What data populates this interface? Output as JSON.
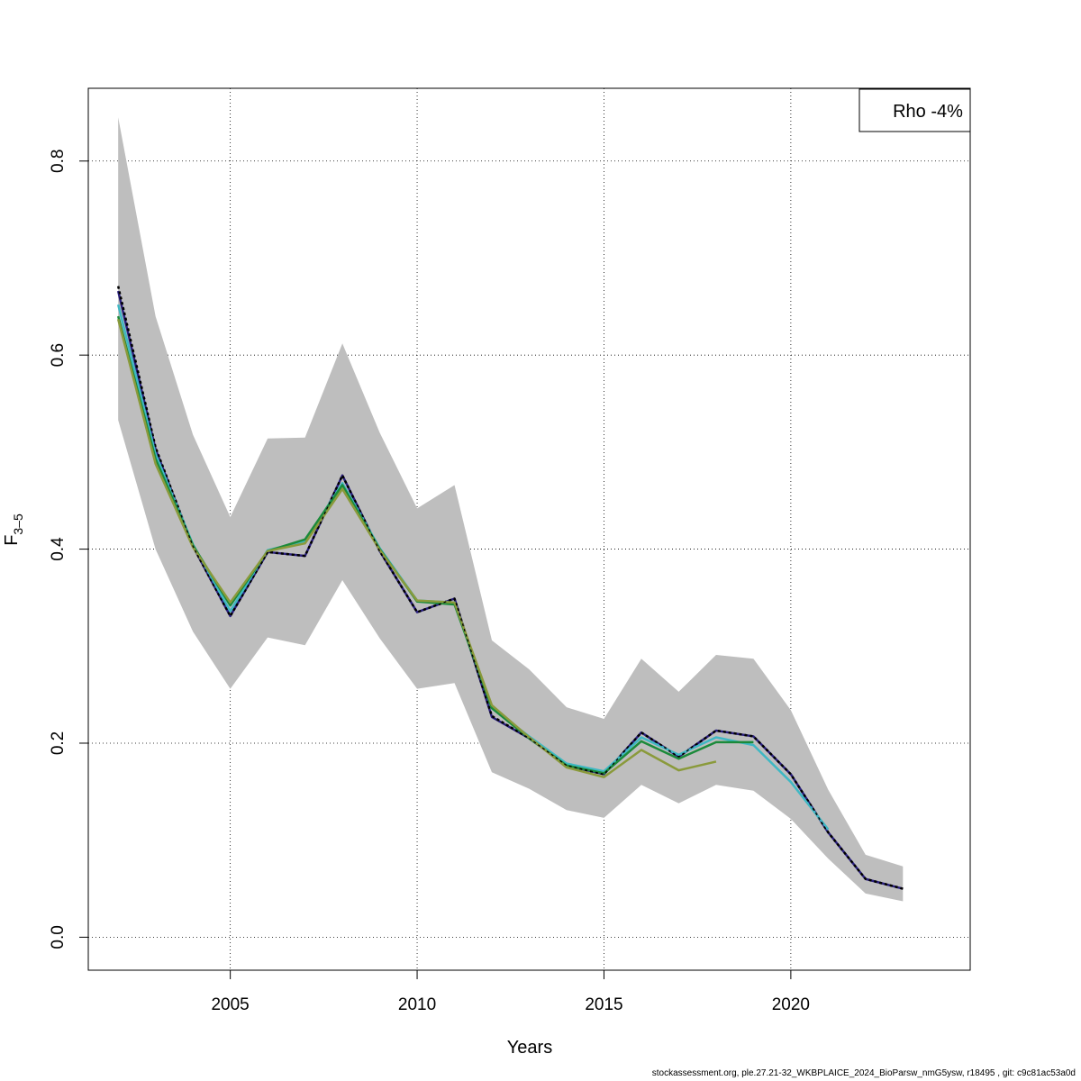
{
  "chart_data": {
    "type": "line",
    "xlabel": "Years",
    "ylabel": "F",
    "ylabel_subscript": "3–5",
    "xlim": [
      2001.2,
      2024.8
    ],
    "ylim": [
      -0.034,
      0.875
    ],
    "xticks": [
      2005,
      2010,
      2015,
      2020
    ],
    "yticks": [
      0.0,
      0.2,
      0.4,
      0.6,
      0.8
    ],
    "xtick_labels": [
      "2005",
      "2010",
      "2015",
      "2020"
    ],
    "ytick_labels": [
      "0.0",
      "0.2",
      "0.4",
      "0.6",
      "0.8"
    ],
    "grid": true,
    "legend": {
      "position": "top-right",
      "text": "Rho -4%"
    },
    "band": {
      "color": "#bebebe",
      "x": [
        2002,
        2003,
        2004,
        2005,
        2006,
        2007,
        2008,
        2009,
        2010,
        2011,
        2012,
        2013,
        2014,
        2015,
        2016,
        2017,
        2018,
        2019,
        2020,
        2021,
        2022,
        2023
      ],
      "upper": [
        0.845,
        0.64,
        0.518,
        0.433,
        0.514,
        0.515,
        0.612,
        0.52,
        0.442,
        0.466,
        0.306,
        0.276,
        0.237,
        0.225,
        0.287,
        0.253,
        0.291,
        0.287,
        0.234,
        0.152,
        0.085,
        0.073
      ],
      "lower": [
        0.533,
        0.4,
        0.315,
        0.256,
        0.309,
        0.301,
        0.368,
        0.308,
        0.256,
        0.262,
        0.17,
        0.153,
        0.131,
        0.123,
        0.157,
        0.138,
        0.157,
        0.151,
        0.122,
        0.081,
        0.045,
        0.037
      ]
    },
    "series": [
      {
        "color": "#000000",
        "dashed": true,
        "x": [
          2002,
          2003,
          2004,
          2005,
          2006,
          2007,
          2008,
          2009,
          2010,
          2011,
          2012,
          2013,
          2014,
          2015,
          2016,
          2017,
          2018,
          2019,
          2020,
          2021,
          2022,
          2023
        ],
        "values": [
          0.671,
          0.505,
          0.403,
          0.331,
          0.397,
          0.393,
          0.476,
          0.398,
          0.335,
          0.349,
          0.228,
          0.205,
          0.177,
          0.168,
          0.211,
          0.186,
          0.213,
          0.207,
          0.168,
          0.108,
          0.06,
          0.05
        ]
      },
      {
        "color": "#2a1f7e",
        "x": [
          2002,
          2003,
          2004,
          2005,
          2006,
          2007,
          2008,
          2009,
          2010,
          2011,
          2012,
          2013,
          2014,
          2015,
          2016,
          2017,
          2018,
          2019,
          2020,
          2021,
          2022,
          2023
        ],
        "values": [
          0.666,
          0.503,
          0.403,
          0.331,
          0.397,
          0.393,
          0.476,
          0.398,
          0.335,
          0.349,
          0.227,
          0.205,
          0.177,
          0.168,
          0.211,
          0.186,
          0.213,
          0.207,
          0.168,
          0.108,
          0.06,
          0.05
        ]
      },
      {
        "color": "#3fb8c4",
        "x": [
          2002,
          2003,
          2004,
          2005,
          2006,
          2007,
          2008,
          2009,
          2010,
          2011,
          2012,
          2013,
          2014,
          2015,
          2016,
          2017,
          2018,
          2019,
          2020,
          2021
        ],
        "values": [
          0.652,
          0.498,
          0.405,
          0.336,
          0.399,
          0.408,
          0.468,
          0.401,
          0.347,
          0.345,
          0.236,
          0.207,
          0.179,
          0.171,
          0.206,
          0.188,
          0.206,
          0.198,
          0.16,
          0.111
        ]
      },
      {
        "color": "#1b8a3a",
        "x": [
          2002,
          2003,
          2004,
          2005,
          2006,
          2007,
          2008,
          2009,
          2010,
          2011,
          2012,
          2013,
          2014,
          2015,
          2016,
          2017,
          2018,
          2019
        ],
        "values": [
          0.64,
          0.493,
          0.404,
          0.342,
          0.398,
          0.41,
          0.466,
          0.4,
          0.346,
          0.343,
          0.236,
          0.205,
          0.177,
          0.169,
          0.202,
          0.184,
          0.201,
          0.201
        ]
      },
      {
        "color": "#8a9a3b",
        "x": [
          2002,
          2003,
          2004,
          2005,
          2006,
          2007,
          2008,
          2009,
          2010,
          2011,
          2012,
          2013,
          2014,
          2015,
          2016,
          2017,
          2018
        ],
        "values": [
          0.637,
          0.488,
          0.402,
          0.345,
          0.398,
          0.406,
          0.462,
          0.399,
          0.347,
          0.345,
          0.239,
          0.206,
          0.175,
          0.165,
          0.193,
          0.172,
          0.181
        ]
      }
    ]
  },
  "footer": "stockassessment.org, ple.27.21-32_WKBPLAICE_2024_BioParsw_nmG5ysw, r18495 , git: c9c81ac53a0d"
}
